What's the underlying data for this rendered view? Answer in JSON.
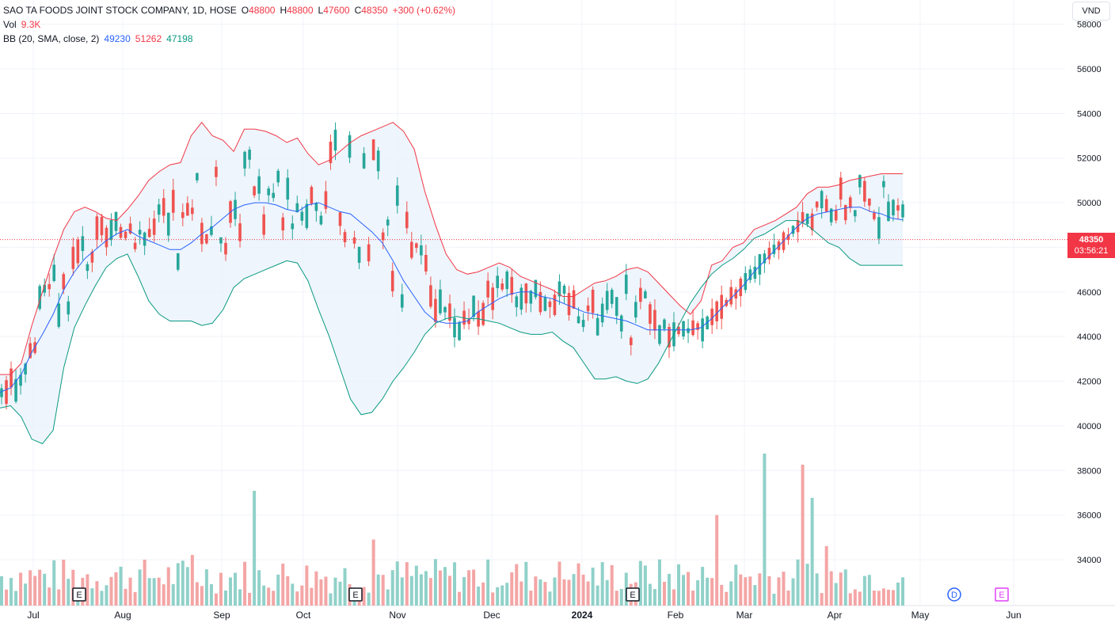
{
  "legend": {
    "title": "SAO TA FOODS JOINT STOCK COMPANY, 1D, HOSE",
    "o_label": "O",
    "o": "48800",
    "h_label": "H",
    "h": "48800",
    "l_label": "L",
    "l": "47600",
    "c_label": "C",
    "c": "48350",
    "change": "+300 (+0.62%)",
    "vol_label": "Vol",
    "vol": "9.3K",
    "bb_label": "BB (20, SMA, close, 2)",
    "bb_mid": "49230",
    "bb_upper": "51262",
    "bb_lower": "47198"
  },
  "currency": "VND",
  "last_price": {
    "price": "48350",
    "countdown": "03:56:21"
  },
  "colors": {
    "up": "#26a69a",
    "down": "#ef5350",
    "vol_up": "#90d1c9",
    "vol_down": "#f4a5a5",
    "bb_upper": "#f23645",
    "bb_mid": "#2962ff",
    "bb_lower": "#089981",
    "bb_fill": "#eaf2fb"
  },
  "events": [
    {
      "label": "E",
      "x_month": "Jul"
    },
    {
      "label": "E",
      "x_month": "Oct"
    },
    {
      "label": "E",
      "x_month": "Jan"
    },
    {
      "label": "D",
      "x_month": "May"
    },
    {
      "label": "E",
      "x_month": "May"
    }
  ],
  "chart_data": {
    "type": "candlestick",
    "title": "SAO TA FOODS JOINT STOCK COMPANY, 1D, HOSE",
    "x_tick_labels": [
      "Jul",
      "Aug",
      "Sep",
      "Oct",
      "Nov",
      "Dec",
      "2024",
      "Feb",
      "Mar",
      "Apr",
      "May",
      "Jun"
    ],
    "y_tick_labels": [
      "34000",
      "36000",
      "38000",
      "40000",
      "42000",
      "44000",
      "46000",
      "48000",
      "50000",
      "52000",
      "54000",
      "56000",
      "58000"
    ],
    "ylim": [
      32000,
      58500
    ],
    "bb_upper": [
      42300,
      42300,
      42800,
      44500,
      46000,
      47500,
      48800,
      49600,
      49800,
      49600,
      49300,
      49200,
      49700,
      50300,
      51000,
      51400,
      51700,
      51800,
      53000,
      53600,
      53000,
      52800,
      52300,
      53300,
      53300,
      53200,
      53000,
      52700,
      52900,
      52200,
      51700,
      51900,
      52300,
      52700,
      53000,
      53200,
      53400,
      53600,
      53200,
      52400,
      50500,
      49000,
      47700,
      47000,
      46800,
      46900,
      47100,
      47300,
      47100,
      46700,
      46500,
      46300,
      46100,
      45800,
      45800,
      46100,
      46400,
      46500,
      46700,
      47000,
      47100,
      46900,
      46400,
      45900,
      45400,
      45000,
      45600,
      47200,
      47400,
      48000,
      48200,
      48800,
      49000,
      49200,
      49500,
      49800,
      50400,
      50700,
      50700,
      50800,
      51000,
      51100,
      51200,
      51300,
      51300,
      51300
    ],
    "bb_mid": [
      41500,
      41700,
      42300,
      43300,
      44100,
      45000,
      46100,
      46900,
      47500,
      47900,
      48300,
      48600,
      48800,
      48500,
      48300,
      48100,
      47900,
      47900,
      48200,
      48600,
      48900,
      49300,
      49700,
      49900,
      50000,
      50000,
      49900,
      49700,
      49600,
      49900,
      50000,
      49800,
      49600,
      49500,
      49100,
      48700,
      48200,
      47400,
      46500,
      45800,
      45100,
      44700,
      44600,
      44600,
      44700,
      45100,
      45400,
      45700,
      45900,
      46000,
      46000,
      45800,
      45700,
      45500,
      45300,
      45100,
      45000,
      44900,
      44800,
      44700,
      44500,
      44300,
      44300,
      44300,
      44300,
      44300,
      44400,
      44800,
      45300,
      45800,
      46300,
      46900,
      47400,
      47900,
      48400,
      48900,
      49300,
      49500,
      49600,
      49700,
      49800,
      49800,
      49600,
      49500,
      49300,
      49230
    ],
    "bb_lower": [
      40800,
      40900,
      40400,
      39400,
      39200,
      39800,
      42600,
      44400,
      45400,
      46300,
      47100,
      47500,
      47700,
      46700,
      45600,
      45000,
      44700,
      44700,
      44700,
      44500,
      44600,
      45200,
      46200,
      46600,
      46800,
      47000,
      47200,
      47400,
      47300,
      46500,
      45200,
      44000,
      42600,
      41200,
      40500,
      40600,
      41200,
      42000,
      42600,
      43300,
      44100,
      44600,
      44800,
      44900,
      44800,
      44800,
      44700,
      44600,
      44400,
      44200,
      44100,
      44100,
      44200,
      43800,
      43500,
      42800,
      42100,
      42100,
      42200,
      42000,
      41900,
      42100,
      42800,
      43700,
      44600,
      45500,
      46200,
      46800,
      47200,
      47500,
      47900,
      48400,
      48600,
      48900,
      49200,
      49200,
      49000,
      48600,
      48200,
      48000,
      47500,
      47198,
      47198,
      47198,
      47198,
      47198
    ],
    "last_price": 48350
  }
}
